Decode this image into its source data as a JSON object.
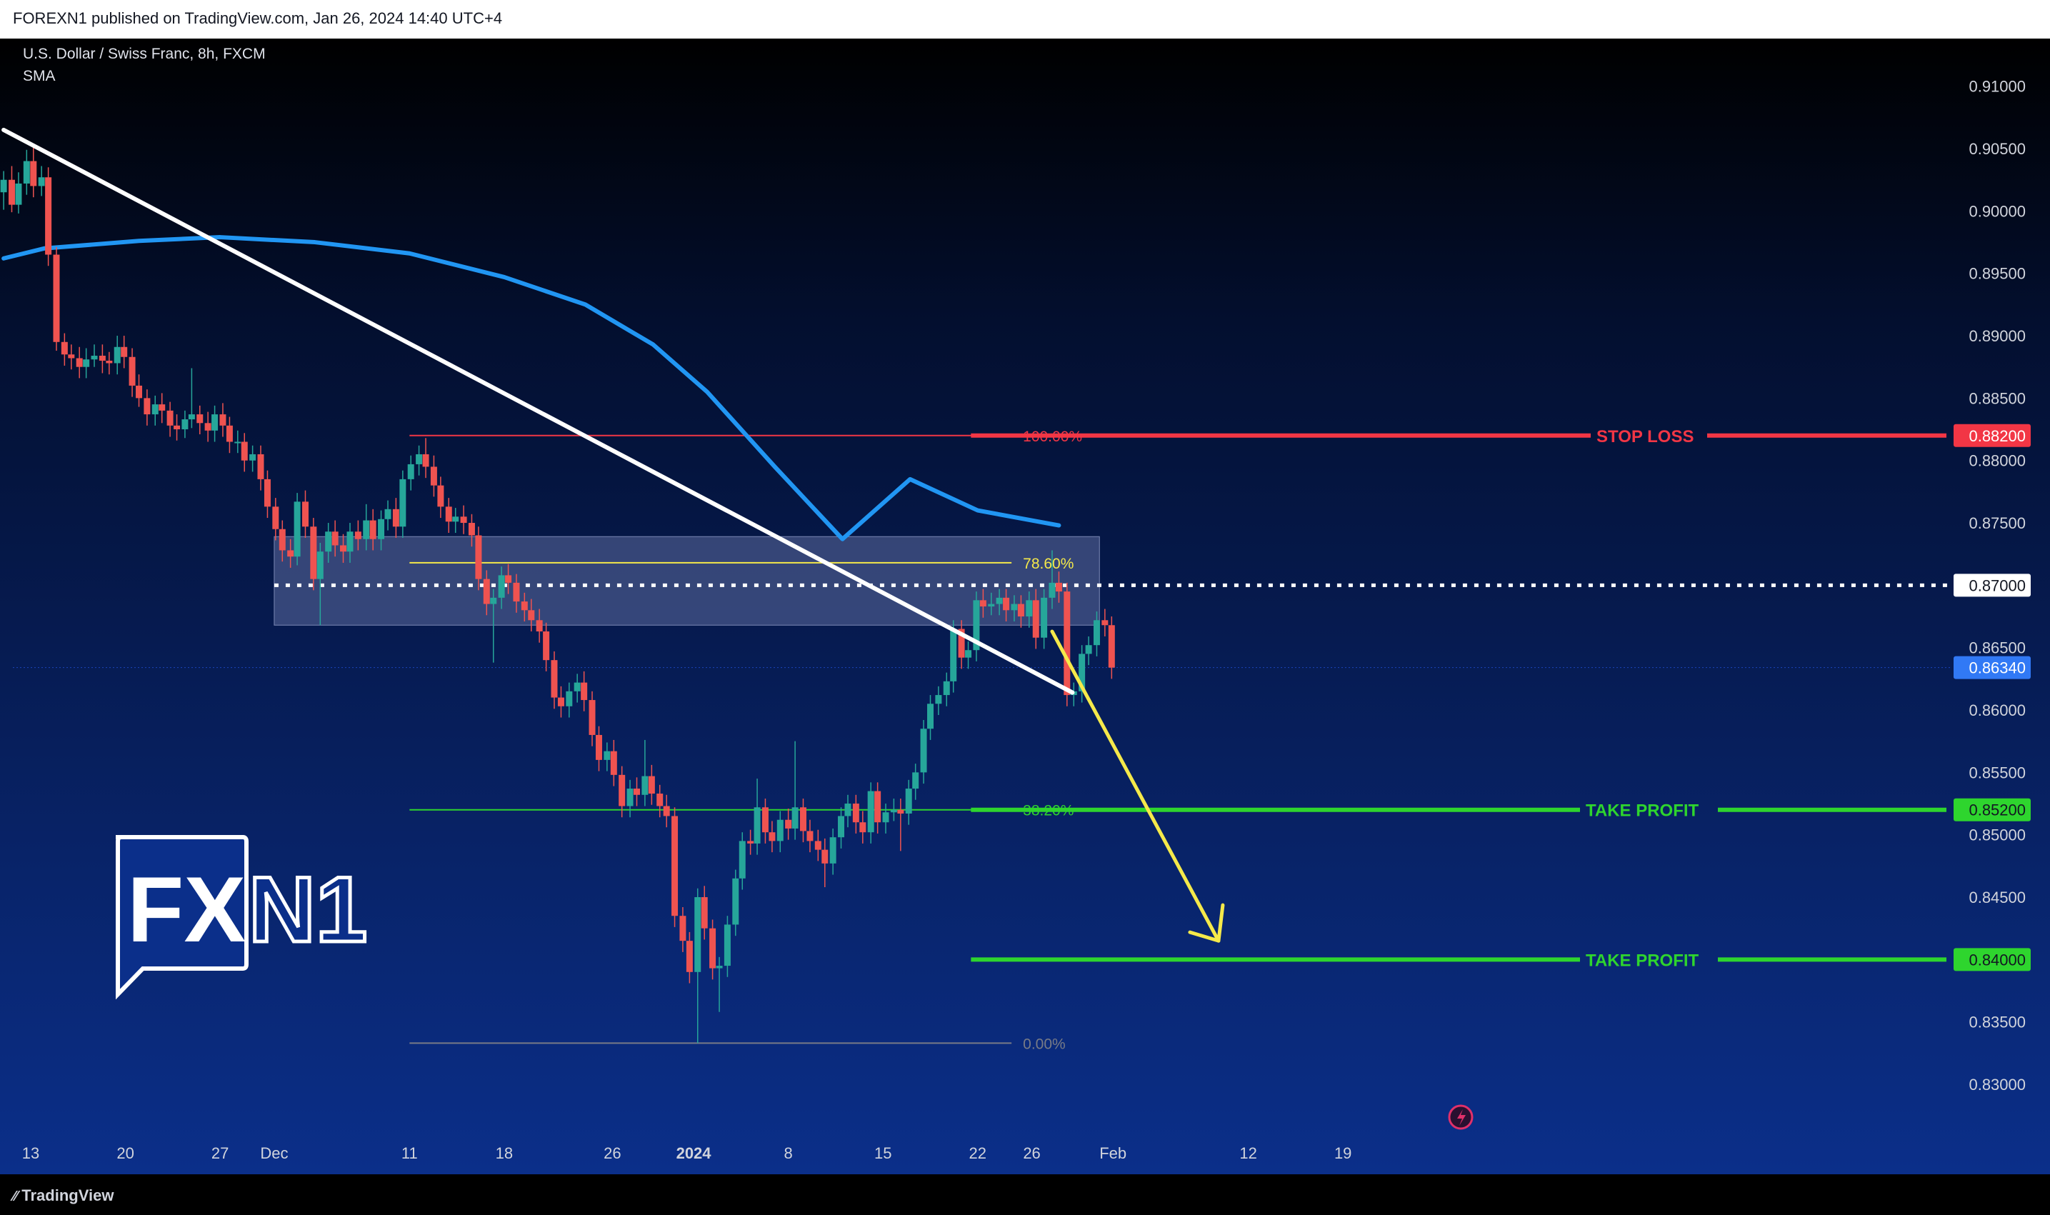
{
  "header": {
    "publish_line": "FOREXN1 published on TradingView.com, Jan 26, 2024 14:40 UTC+4"
  },
  "legend": {
    "symbol_line": "U.S. Dollar / Swiss Franc, 8h, FXCM",
    "indicator": "SMA"
  },
  "footer": {
    "brand": "TradingView"
  },
  "watermark": {
    "text": "FXN1"
  },
  "colors": {
    "bull": "#26a69a",
    "bear": "#ef5350",
    "sma": "#2196f3",
    "trendline": "#ffffff",
    "stop_loss": "#f23645",
    "take_profit": "#2ed52e",
    "fib_786": "#f5e94a",
    "fib_0": "#787b86",
    "arrow": "#f5e94a",
    "zone": "#5d6c9e"
  },
  "chart_data": {
    "type": "candlestick",
    "title": "U.S. Dollar / Swiss Franc, 8h, FXCM",
    "indicator": "SMA",
    "y_ticks": [
      "0.91000",
      "0.90500",
      "0.90000",
      "0.89500",
      "0.89000",
      "0.88500",
      "0.88000",
      "0.87500",
      "0.86500",
      "0.86000",
      "0.85500",
      "0.85000",
      "0.84500",
      "0.83500",
      "0.83000"
    ],
    "y_tick_values": [
      0.91,
      0.905,
      0.9,
      0.895,
      0.89,
      0.885,
      0.88,
      0.875,
      0.865,
      0.86,
      0.855,
      0.85,
      0.845,
      0.835,
      0.83
    ],
    "x_ticks": [
      "13",
      "20",
      "27",
      "Dec",
      "11",
      "18",
      "26",
      "2024",
      "8",
      "15",
      "22",
      "26",
      "Feb",
      "12",
      "19"
    ],
    "x_tick_days": [
      0,
      7,
      14,
      18,
      28,
      35,
      43,
      49,
      56,
      63,
      70,
      74,
      80,
      90,
      97
    ],
    "price_labels": [
      {
        "text": "0.88200",
        "value": 0.882,
        "kind": "stop_loss"
      },
      {
        "text": "0.87000",
        "value": 0.87,
        "kind": "level"
      },
      {
        "text": "0.86340",
        "value": 0.8634,
        "kind": "current"
      },
      {
        "text": "0.85200",
        "value": 0.852,
        "kind": "take_profit"
      },
      {
        "text": "0.84000",
        "value": 0.84,
        "kind": "take_profit"
      }
    ],
    "fib_levels": [
      {
        "label": "100.00%",
        "value": 0.882
      },
      {
        "label": "78.60%",
        "value": 0.8718
      },
      {
        "label": "38.20%",
        "value": 0.852
      },
      {
        "label": "0.00%",
        "value": 0.8333
      }
    ],
    "annotations": [
      {
        "text": "STOP LOSS",
        "value": 0.882
      },
      {
        "text": "TAKE PROFIT",
        "value": 0.852
      },
      {
        "text": "TAKE PROFIT",
        "value": 0.84
      }
    ],
    "resistance_zone": {
      "from_day": 18,
      "to_day": 79,
      "low": 0.8668,
      "high": 0.8739
    },
    "trendline": [
      {
        "day": -2,
        "price": 0.9065
      },
      {
        "day": 77,
        "price": 0.8614
      }
    ],
    "sma": [
      [
        -2,
        0.8962
      ],
      [
        1,
        0.897
      ],
      [
        8,
        0.8976
      ],
      [
        14,
        0.8979
      ],
      [
        21,
        0.8975
      ],
      [
        28,
        0.8966
      ],
      [
        35,
        0.8947
      ],
      [
        41,
        0.8925
      ],
      [
        46,
        0.8893
      ],
      [
        50,
        0.8855
      ],
      [
        55,
        0.8795
      ],
      [
        60,
        0.8737
      ],
      [
        65,
        0.8785
      ],
      [
        70,
        0.876
      ],
      [
        76,
        0.8748
      ]
    ],
    "sma_values_note": "",
    "arrow": {
      "from": [
        75.5,
        0.8663
      ],
      "to": [
        87.8,
        0.8415
      ]
    },
    "candles": [
      [
        -2.0,
        0.9015,
        0.9025,
        0.9032,
        0.9001
      ],
      [
        -1.4,
        0.9025,
        0.9005,
        0.9036,
        0.8999
      ],
      [
        -0.9,
        0.9005,
        0.9022,
        0.9031,
        0.8998
      ],
      [
        -0.3,
        0.9022,
        0.904,
        0.9049,
        0.9013
      ],
      [
        0.2,
        0.904,
        0.902,
        0.9052,
        0.9011
      ],
      [
        0.8,
        0.902,
        0.9027,
        0.9036,
        0.9012
      ],
      [
        1.3,
        0.9027,
        0.8965,
        0.9035,
        0.8956
      ],
      [
        1.9,
        0.8965,
        0.8895,
        0.8971,
        0.8888
      ],
      [
        2.5,
        0.8895,
        0.8885,
        0.8902,
        0.8876
      ],
      [
        3.0,
        0.8885,
        0.8882,
        0.8893,
        0.8873
      ],
      [
        3.6,
        0.8882,
        0.8875,
        0.8891,
        0.8866
      ],
      [
        4.1,
        0.8875,
        0.8881,
        0.889,
        0.8866
      ],
      [
        4.7,
        0.8881,
        0.8884,
        0.8893,
        0.8875
      ],
      [
        5.3,
        0.8884,
        0.888,
        0.8893,
        0.887
      ],
      [
        5.8,
        0.888,
        0.8878,
        0.8887,
        0.8869
      ],
      [
        6.4,
        0.8878,
        0.8891,
        0.89,
        0.8869
      ],
      [
        6.9,
        0.8891,
        0.8883,
        0.89,
        0.8874
      ],
      [
        7.5,
        0.8883,
        0.886,
        0.889,
        0.8851
      ],
      [
        8.0,
        0.886,
        0.885,
        0.8869,
        0.8843
      ],
      [
        8.6,
        0.885,
        0.8837,
        0.8857,
        0.8828
      ],
      [
        9.2,
        0.8837,
        0.8845,
        0.8852,
        0.8828
      ],
      [
        9.7,
        0.8845,
        0.884,
        0.8854,
        0.883
      ],
      [
        10.3,
        0.884,
        0.8828,
        0.8847,
        0.8819
      ],
      [
        10.8,
        0.8828,
        0.8825,
        0.8837,
        0.8816
      ],
      [
        11.4,
        0.8825,
        0.8833,
        0.884,
        0.8818
      ],
      [
        11.9,
        0.8833,
        0.8837,
        0.8874,
        0.8826
      ],
      [
        12.5,
        0.8837,
        0.883,
        0.8844,
        0.8821
      ],
      [
        13.1,
        0.883,
        0.8824,
        0.8839,
        0.8815
      ],
      [
        13.6,
        0.8824,
        0.8837,
        0.8844,
        0.8815
      ],
      [
        14.2,
        0.8837,
        0.8828,
        0.8846,
        0.8819
      ],
      [
        14.7,
        0.8828,
        0.8815,
        0.8835,
        0.8806
      ],
      [
        15.3,
        0.8815,
        0.8815,
        0.8824,
        0.8806
      ],
      [
        15.8,
        0.8815,
        0.88,
        0.8822,
        0.8791
      ],
      [
        16.4,
        0.88,
        0.8805,
        0.8812,
        0.8791
      ],
      [
        17.0,
        0.8805,
        0.8785,
        0.8812,
        0.8776
      ],
      [
        17.5,
        0.8785,
        0.8763,
        0.8792,
        0.8754
      ],
      [
        18.1,
        0.8763,
        0.8745,
        0.877,
        0.8736
      ],
      [
        18.6,
        0.8745,
        0.8728,
        0.8752,
        0.8719
      ],
      [
        19.2,
        0.8728,
        0.8723,
        0.8737,
        0.8714
      ],
      [
        19.7,
        0.8723,
        0.8767,
        0.8774,
        0.8716
      ],
      [
        20.3,
        0.8767,
        0.8747,
        0.8776,
        0.8738
      ],
      [
        20.9,
        0.8747,
        0.8705,
        0.8754,
        0.8696
      ],
      [
        21.4,
        0.8705,
        0.8727,
        0.8734,
        0.8668
      ],
      [
        22.0,
        0.8727,
        0.8743,
        0.875,
        0.8718
      ],
      [
        22.5,
        0.8743,
        0.8732,
        0.8752,
        0.8723
      ],
      [
        23.1,
        0.8732,
        0.8727,
        0.8741,
        0.8718
      ],
      [
        23.6,
        0.8727,
        0.8743,
        0.875,
        0.8718
      ],
      [
        24.2,
        0.8743,
        0.8737,
        0.8752,
        0.8728
      ],
      [
        24.8,
        0.8737,
        0.8752,
        0.8765,
        0.8728
      ],
      [
        25.3,
        0.8752,
        0.8737,
        0.8761,
        0.8728
      ],
      [
        25.9,
        0.8737,
        0.8753,
        0.876,
        0.8728
      ],
      [
        26.4,
        0.8753,
        0.8761,
        0.8768,
        0.8744
      ],
      [
        27.0,
        0.8761,
        0.8747,
        0.877,
        0.8738
      ],
      [
        27.5,
        0.8747,
        0.8785,
        0.8792,
        0.8738
      ],
      [
        28.1,
        0.8785,
        0.8797,
        0.8804,
        0.8776
      ],
      [
        28.7,
        0.8797,
        0.8805,
        0.8812,
        0.8788
      ],
      [
        29.2,
        0.8805,
        0.8795,
        0.8818,
        0.8786
      ],
      [
        29.8,
        0.8795,
        0.878,
        0.8804,
        0.8771
      ],
      [
        30.3,
        0.878,
        0.8763,
        0.8787,
        0.8754
      ],
      [
        30.9,
        0.8763,
        0.8751,
        0.877,
        0.8742
      ],
      [
        31.4,
        0.8751,
        0.8755,
        0.8762,
        0.8742
      ],
      [
        32.0,
        0.8755,
        0.875,
        0.8764,
        0.8741
      ],
      [
        32.6,
        0.875,
        0.874,
        0.8757,
        0.8731
      ],
      [
        33.1,
        0.874,
        0.8705,
        0.8747,
        0.8696
      ],
      [
        33.7,
        0.8705,
        0.8685,
        0.8712,
        0.8676
      ],
      [
        34.2,
        0.8685,
        0.869,
        0.8697,
        0.8638
      ],
      [
        34.8,
        0.869,
        0.8708,
        0.8715,
        0.8681
      ],
      [
        35.3,
        0.8708,
        0.8702,
        0.8717,
        0.8693
      ],
      [
        35.9,
        0.8702,
        0.8687,
        0.8709,
        0.8678
      ],
      [
        36.5,
        0.8687,
        0.868,
        0.8694,
        0.8671
      ],
      [
        37.0,
        0.868,
        0.8672,
        0.8689,
        0.8663
      ],
      [
        37.6,
        0.8672,
        0.8663,
        0.8681,
        0.8654
      ],
      [
        38.1,
        0.8663,
        0.864,
        0.867,
        0.8631
      ],
      [
        38.7,
        0.864,
        0.861,
        0.8647,
        0.8601
      ],
      [
        39.2,
        0.861,
        0.8603,
        0.8619,
        0.8594
      ],
      [
        39.8,
        0.8603,
        0.8615,
        0.8622,
        0.8594
      ],
      [
        40.4,
        0.8615,
        0.8622,
        0.8629,
        0.8606
      ],
      [
        40.9,
        0.8622,
        0.8608,
        0.8631,
        0.8599
      ],
      [
        41.5,
        0.8608,
        0.858,
        0.8615,
        0.8571
      ],
      [
        42.0,
        0.858,
        0.856,
        0.8587,
        0.8551
      ],
      [
        42.6,
        0.856,
        0.8567,
        0.8574,
        0.8551
      ],
      [
        43.1,
        0.8567,
        0.8548,
        0.8576,
        0.8539
      ],
      [
        43.7,
        0.8548,
        0.8523,
        0.8555,
        0.8514
      ],
      [
        44.3,
        0.8523,
        0.8537,
        0.8544,
        0.8514
      ],
      [
        44.8,
        0.8537,
        0.8532,
        0.8546,
        0.8523
      ],
      [
        45.4,
        0.8532,
        0.8547,
        0.8576,
        0.8523
      ],
      [
        45.9,
        0.8547,
        0.8533,
        0.8556,
        0.8524
      ],
      [
        46.5,
        0.8533,
        0.8523,
        0.854,
        0.8514
      ],
      [
        47.0,
        0.8523,
        0.8515,
        0.8532,
        0.8506
      ],
      [
        47.6,
        0.8515,
        0.8435,
        0.8522,
        0.8426
      ],
      [
        48.2,
        0.8435,
        0.8415,
        0.8442,
        0.8406
      ],
      [
        48.7,
        0.8415,
        0.839,
        0.8422,
        0.8381
      ],
      [
        49.3,
        0.839,
        0.845,
        0.8457,
        0.8333
      ],
      [
        49.8,
        0.845,
        0.8425,
        0.8459,
        0.8416
      ],
      [
        50.4,
        0.8425,
        0.8393,
        0.8432,
        0.8384
      ],
      [
        50.9,
        0.8393,
        0.8395,
        0.8402,
        0.8358
      ],
      [
        51.5,
        0.8395,
        0.8428,
        0.8435,
        0.8386
      ],
      [
        52.1,
        0.8428,
        0.8465,
        0.8472,
        0.8419
      ],
      [
        52.6,
        0.8465,
        0.8495,
        0.8502,
        0.8456
      ],
      [
        53.2,
        0.8495,
        0.8493,
        0.8504,
        0.8484
      ],
      [
        53.7,
        0.8493,
        0.8522,
        0.8545,
        0.8484
      ],
      [
        54.3,
        0.8522,
        0.8502,
        0.8529,
        0.8493
      ],
      [
        54.8,
        0.8502,
        0.8495,
        0.8511,
        0.8486
      ],
      [
        55.4,
        0.8495,
        0.8512,
        0.8519,
        0.8486
      ],
      [
        56.0,
        0.8512,
        0.8505,
        0.8521,
        0.8496
      ],
      [
        56.5,
        0.8505,
        0.8522,
        0.8575,
        0.8496
      ],
      [
        57.1,
        0.8522,
        0.8503,
        0.8529,
        0.8494
      ],
      [
        57.6,
        0.8503,
        0.8495,
        0.8512,
        0.8486
      ],
      [
        58.2,
        0.8495,
        0.8488,
        0.8504,
        0.8479
      ],
      [
        58.7,
        0.8488,
        0.8477,
        0.8497,
        0.8458
      ],
      [
        59.3,
        0.8477,
        0.8498,
        0.8505,
        0.8468
      ],
      [
        59.9,
        0.8498,
        0.8515,
        0.8522,
        0.8489
      ],
      [
        60.4,
        0.8515,
        0.8525,
        0.8532,
        0.8506
      ],
      [
        61.0,
        0.8525,
        0.851,
        0.8532,
        0.8501
      ],
      [
        61.5,
        0.851,
        0.8502,
        0.8519,
        0.8493
      ],
      [
        62.1,
        0.8502,
        0.8535,
        0.8542,
        0.8493
      ],
      [
        62.6,
        0.8535,
        0.851,
        0.8542,
        0.8501
      ],
      [
        63.2,
        0.851,
        0.8518,
        0.8525,
        0.8501
      ],
      [
        63.8,
        0.8518,
        0.852,
        0.8529,
        0.8511
      ],
      [
        64.3,
        0.852,
        0.8517,
        0.8529,
        0.8487
      ],
      [
        64.9,
        0.8517,
        0.8537,
        0.8544,
        0.8508
      ],
      [
        65.4,
        0.8537,
        0.855,
        0.8557,
        0.8528
      ],
      [
        66.0,
        0.855,
        0.8585,
        0.8592,
        0.8541
      ],
      [
        66.5,
        0.8585,
        0.8605,
        0.8612,
        0.8576
      ],
      [
        67.1,
        0.8605,
        0.8612,
        0.8619,
        0.8596
      ],
      [
        67.7,
        0.8612,
        0.8623,
        0.863,
        0.8603
      ],
      [
        68.2,
        0.8623,
        0.8665,
        0.8672,
        0.8614
      ],
      [
        68.8,
        0.8665,
        0.8642,
        0.8672,
        0.8633
      ],
      [
        69.3,
        0.8642,
        0.8648,
        0.8655,
        0.8633
      ],
      [
        69.9,
        0.8648,
        0.8688,
        0.8695,
        0.8639
      ],
      [
        70.4,
        0.8688,
        0.8683,
        0.8697,
        0.8674
      ],
      [
        71.0,
        0.8683,
        0.8685,
        0.8694,
        0.8676
      ],
      [
        71.6,
        0.8685,
        0.869,
        0.8697,
        0.8676
      ],
      [
        72.1,
        0.869,
        0.868,
        0.8697,
        0.8671
      ],
      [
        72.7,
        0.868,
        0.8685,
        0.8692,
        0.8671
      ],
      [
        73.2,
        0.8685,
        0.8675,
        0.8692,
        0.8666
      ],
      [
        73.8,
        0.8675,
        0.8688,
        0.8695,
        0.8666
      ],
      [
        74.3,
        0.8688,
        0.8658,
        0.8697,
        0.8649
      ],
      [
        74.9,
        0.8658,
        0.869,
        0.8697,
        0.8649
      ],
      [
        75.5,
        0.869,
        0.8702,
        0.8728,
        0.8681
      ],
      [
        76.0,
        0.8702,
        0.8695,
        0.8711,
        0.8686
      ],
      [
        76.6,
        0.8695,
        0.8612,
        0.8702,
        0.8603
      ],
      [
        77.1,
        0.8612,
        0.8615,
        0.8622,
        0.8603
      ],
      [
        77.7,
        0.8615,
        0.8645,
        0.8652,
        0.8606
      ],
      [
        78.2,
        0.8645,
        0.8652,
        0.8659,
        0.8636
      ],
      [
        78.8,
        0.8652,
        0.8672,
        0.8679,
        0.8643
      ],
      [
        79.4,
        0.8672,
        0.8668,
        0.8681,
        0.8659
      ],
      [
        79.9,
        0.8668,
        0.8634,
        0.8675,
        0.8625
      ]
    ]
  }
}
